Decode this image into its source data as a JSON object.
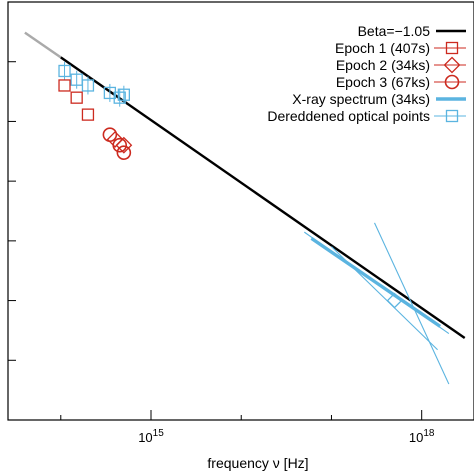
{
  "chart_data": {
    "type": "scatter",
    "title": "",
    "xlabel": "frequency ν [Hz]",
    "ylabel": "",
    "xscale": "log",
    "yscale": "log",
    "xlim": [
      26000000000000.0,
      3.8e+18
    ],
    "ylim": [
      1e-16,
      1e-09
    ],
    "x_ticks": [
      {
        "value": 1000000000000000.0,
        "label": "10",
        "exp": "15"
      },
      {
        "value": 1e+18,
        "label": "10",
        "exp": "18"
      }
    ],
    "grid": false,
    "legend_position": "top-right",
    "colors": {
      "beta": "#000000",
      "beta_extension": "#aaaaaa",
      "epoch": "#cc2a1f",
      "xray": "#5bb4e0",
      "optical": "#5bb4e0"
    },
    "series": [
      {
        "name": "Beta=−1.05",
        "type": "line",
        "slope": -1.05,
        "x": [
          100000000000000.0,
          3e+18
        ],
        "y": [
          1.18e-10,
          2.36e-15
        ],
        "extension": {
          "x": [
            40000000000000.0,
            100000000000000.0
          ],
          "y": [
            3.07e-10,
            1.18e-10
          ]
        }
      },
      {
        "name": "Epoch 1 (407s)",
        "type": "scatter",
        "marker": "square",
        "x": [
          110000000000000.0,
          150000000000000.0,
          200000000000000.0
        ],
        "y": [
          4e-11,
          2.5e-11,
          1.3e-11
        ]
      },
      {
        "name": "Epoch 2 (34ks)",
        "type": "scatter",
        "marker": "diamond",
        "x": [
          400000000000000.0,
          500000000000000.0
        ],
        "y": [
          5e-12,
          4e-12
        ]
      },
      {
        "name": "Epoch 3 (67ks)",
        "type": "scatter",
        "marker": "circle",
        "x": [
          350000000000000.0,
          450000000000000.0,
          500000000000000.0
        ],
        "y": [
          6e-12,
          4e-12,
          3e-12
        ]
      },
      {
        "name": "X-ray spectrum (34ks)",
        "type": "line",
        "x": [
          6e+16,
          1.6e+18
        ],
        "y": [
          1.1e-13,
          3.7e-15
        ],
        "error_lines": [
          {
            "x": [
              5e+16,
              2e+18
            ],
            "y": [
              1.4e-13,
              2.8e-15
            ]
          },
          {
            "x": [
              3e+17,
              2e+18
            ],
            "y": [
              2e-13,
              4e-16
            ]
          },
          {
            "x": [
              6e+16,
              1e+18
            ],
            "y": [
              1.1e-13,
              6e-15
            ]
          },
          {
            "x": [
              1e+17,
              1.5e+18
            ],
            "y": [
              8e-14,
              1.5e-15
            ]
          }
        ],
        "marker_point": {
          "x": 5e+17,
          "y": 1e-14
        }
      },
      {
        "name": "Dereddened optical points",
        "type": "scatter",
        "marker": "square",
        "x": [
          110000000000000.0,
          150000000000000.0,
          200000000000000.0,
          350000000000000.0,
          450000000000000.0,
          500000000000000.0
        ],
        "y": [
          7e-11,
          5e-11,
          4e-11,
          3e-11,
          2.5e-11,
          2.8e-11
        ]
      }
    ]
  }
}
